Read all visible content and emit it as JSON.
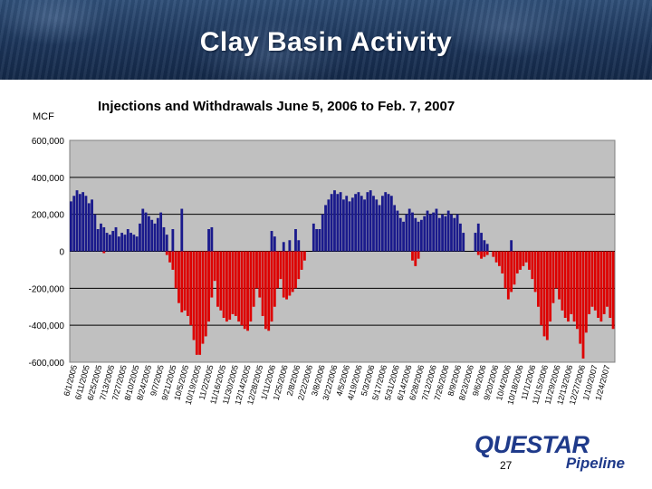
{
  "slide": {
    "title": "Clay Basin Activity",
    "page_number": "27"
  },
  "logo": {
    "word": "QUESTAR",
    "sub": "Pipeline"
  },
  "chart_data": {
    "type": "bar",
    "title": "Injections and Withdrawals  June 5, 2006 to Feb. 7, 2007",
    "ylabel": "MCF",
    "xlabel": "",
    "ylim": [
      -600000,
      600000
    ],
    "yticks": [
      600000,
      400000,
      200000,
      0,
      -200000,
      -400000,
      -600000
    ],
    "ytick_labels": [
      "600,000",
      "400,000",
      "200,000",
      "0",
      "-200,000",
      "-400,000",
      "-600,000"
    ],
    "xtick_labels": [
      "6/1/2005",
      "6/11/2005",
      "6/25/2005",
      "7/13/2005",
      "7/27/2005",
      "8/10/2005",
      "8/24/2005",
      "9/7/2005",
      "9/21/2005",
      "10/5/2005",
      "10/19/2005",
      "11/2/2005",
      "11/16/2005",
      "11/30/2005",
      "12/14/2005",
      "12/28/2005",
      "1/11/2006",
      "1/25/2006",
      "2/8/2006",
      "2/22/2006",
      "3/8/2006",
      "3/22/2006",
      "4/5/2006",
      "4/19/2006",
      "5/3/2006",
      "5/17/2006",
      "5/31/2006",
      "6/14/2006",
      "6/28/2006",
      "7/12/2006",
      "7/26/2006",
      "8/9/2006",
      "8/23/2006",
      "9/6/2006",
      "9/20/2006",
      "10/4/2006",
      "10/18/2006",
      "11/1/2006",
      "11/15/2006",
      "11/29/2006",
      "12/13/2006",
      "12/27/2006",
      "1/10/2007",
      "1/24/2007"
    ],
    "grid": true,
    "plot_background": "#c0c0c0",
    "series": [
      {
        "name": "Injections",
        "color": "#1a1a8c",
        "values": [
          270000,
          300000,
          330000,
          310000,
          320000,
          300000,
          260000,
          280000,
          200000,
          120000,
          150000,
          130000,
          100000,
          90000,
          110000,
          130000,
          80000,
          100000,
          90000,
          120000,
          100000,
          90000,
          80000,
          150000,
          230000,
          210000,
          190000,
          170000,
          150000,
          180000,
          210000,
          130000,
          90000,
          0,
          120000,
          0,
          0,
          230000,
          0,
          0,
          0,
          0,
          0,
          0,
          0,
          0,
          120000,
          130000,
          0,
          0,
          0,
          0,
          0,
          0,
          0,
          0,
          0,
          0,
          0,
          0,
          0,
          0,
          0,
          0,
          0,
          0,
          0,
          110000,
          80000,
          0,
          0,
          50000,
          0,
          60000,
          0,
          120000,
          60000,
          0,
          0,
          0,
          0,
          150000,
          120000,
          120000,
          200000,
          250000,
          280000,
          310000,
          330000,
          310000,
          320000,
          280000,
          300000,
          270000,
          290000,
          310000,
          320000,
          300000,
          280000,
          320000,
          330000,
          300000,
          280000,
          250000,
          300000,
          320000,
          310000,
          300000,
          250000,
          220000,
          180000,
          160000,
          200000,
          230000,
          210000,
          180000,
          160000,
          170000,
          190000,
          220000,
          200000,
          210000,
          230000,
          180000,
          200000,
          190000,
          220000,
          200000,
          180000,
          200000,
          150000,
          100000,
          0,
          0,
          0,
          100000,
          150000,
          100000,
          60000,
          40000,
          0,
          0,
          0,
          0,
          0,
          0,
          0,
          60000,
          0,
          0,
          0,
          0,
          0,
          0,
          0,
          0,
          0,
          0,
          0,
          0,
          0,
          0,
          0,
          0,
          0,
          0,
          0,
          0,
          0,
          0,
          0
        ],
        "bar_count_note": "one value per day"
      },
      {
        "name": "Withdrawals",
        "color": "#dd0000",
        "values": [
          0,
          0,
          0,
          0,
          0,
          0,
          0,
          0,
          0,
          0,
          0,
          -10000,
          0,
          0,
          0,
          0,
          0,
          0,
          0,
          0,
          0,
          0,
          0,
          0,
          0,
          0,
          0,
          0,
          0,
          0,
          0,
          0,
          -20000,
          -60000,
          -100000,
          -200000,
          -280000,
          -330000,
          -320000,
          -350000,
          -400000,
          -480000,
          -560000,
          -560000,
          -500000,
          -460000,
          -380000,
          -250000,
          -160000,
          -300000,
          -320000,
          -360000,
          -380000,
          -370000,
          -340000,
          -350000,
          -380000,
          -400000,
          -420000,
          -430000,
          -380000,
          -300000,
          -200000,
          -250000,
          -350000,
          -420000,
          -430000,
          -380000,
          -300000,
          -200000,
          -150000,
          -250000,
          -260000,
          -240000,
          -220000,
          -200000,
          -150000,
          -100000,
          -50000,
          0,
          0,
          0,
          0,
          0,
          0,
          0,
          0,
          0,
          0,
          0,
          0,
          0,
          0,
          0,
          0,
          0,
          0,
          0,
          0,
          0,
          0,
          0,
          0,
          0,
          0,
          0,
          0,
          0,
          0,
          0,
          0,
          0,
          0,
          0,
          -50000,
          -80000,
          -40000,
          0,
          0,
          0,
          0,
          0,
          0,
          0,
          0,
          0,
          0,
          0,
          0,
          0,
          0,
          0,
          0,
          0,
          0,
          0,
          -20000,
          -40000,
          -30000,
          -20000,
          0,
          -30000,
          -60000,
          -80000,
          -120000,
          -200000,
          -260000,
          -220000,
          -180000,
          -120000,
          -100000,
          -80000,
          -60000,
          -100000,
          -150000,
          -220000,
          -300000,
          -400000,
          -460000,
          -480000,
          -380000,
          -280000,
          -200000,
          -260000,
          -320000,
          -360000,
          -380000,
          -340000,
          -380000,
          -420000,
          -500000,
          -580000,
          -440000,
          -340000,
          -300000,
          -320000,
          -360000,
          -380000,
          -340000,
          -300000,
          -360000,
          -420000
        ]
      }
    ]
  }
}
